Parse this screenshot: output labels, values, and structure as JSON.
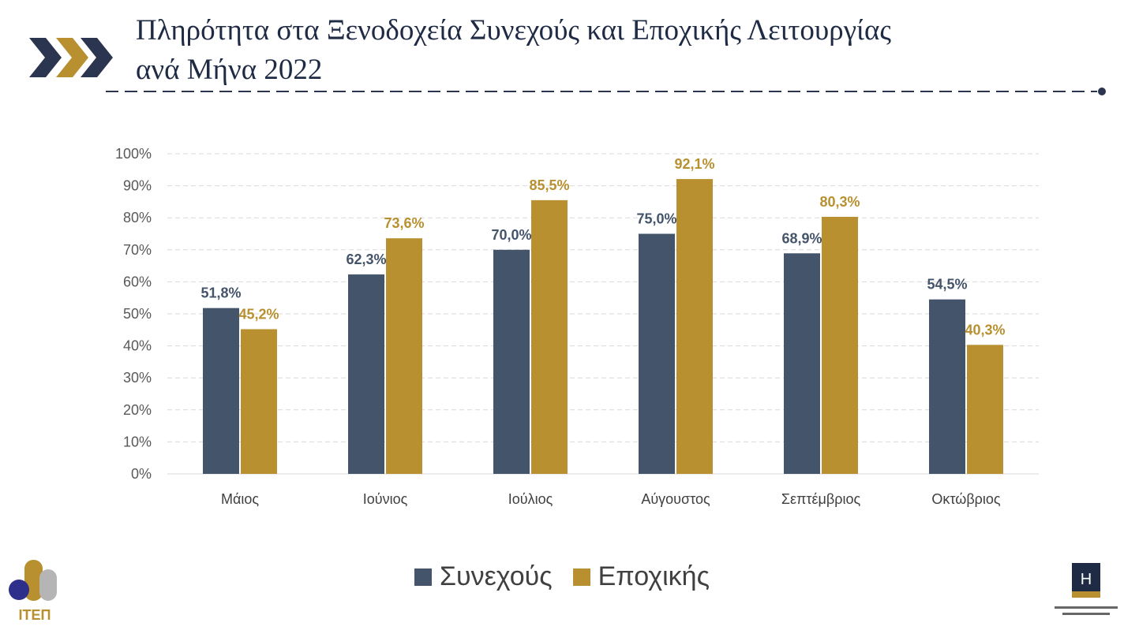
{
  "title_lines": [
    "Πληρότητα στα Ξενοδοχεία Συνεχούς και Εποχικής Λειτουργίας",
    "ανά Μήνα 2022"
  ],
  "colors": {
    "series1": "#44546a",
    "series2": "#b8902f",
    "navy": "#1f2b45"
  },
  "logos": {
    "left": "ΙΤΕΠ",
    "right": "H"
  },
  "chart_data": {
    "type": "bar",
    "title": "Πληρότητα στα Ξενοδοχεία Συνεχούς και Εποχικής Λειτουργίας ανά Μήνα 2022",
    "categories": [
      "Μάιος",
      "Ιούνιος",
      "Ιούλιος",
      "Αύγουστος",
      "Σεπτέμβριος",
      "Οκτώβριος"
    ],
    "series": [
      {
        "name": "Συνεχούς",
        "values": [
          51.8,
          62.3,
          70.0,
          75.0,
          68.9,
          54.5
        ],
        "labels": [
          "51,8%",
          "62,3%",
          "70,0%",
          "75,0%",
          "68,9%",
          "54,5%"
        ]
      },
      {
        "name": "Εποχικής",
        "values": [
          45.2,
          73.6,
          85.5,
          92.1,
          80.3,
          40.3
        ],
        "labels": [
          "45,2%",
          "73,6%",
          "85,5%",
          "92,1%",
          "80,3%",
          "40,3%"
        ]
      }
    ],
    "yticks": [
      "0%",
      "10%",
      "20%",
      "30%",
      "40%",
      "50%",
      "60%",
      "70%",
      "80%",
      "90%",
      "100%"
    ],
    "ylim": [
      0,
      100
    ],
    "xlabel": "",
    "ylabel": "",
    "grid": true,
    "legend": "bottom"
  }
}
